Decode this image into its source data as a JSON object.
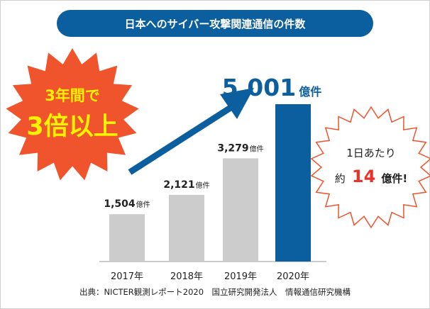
{
  "chart_data": {
    "type": "bar",
    "title": "日本へのサイバー攻撃関連通信の件数",
    "categories": [
      "2017年",
      "2018年",
      "2019年",
      "2020年"
    ],
    "values": [
      1504,
      2121,
      3279,
      5001
    ],
    "value_labels": [
      "1,504",
      "2,121",
      "3,279",
      "5,001"
    ],
    "unit": "億件",
    "highlight_index": 3,
    "colors": {
      "bar": "#cccccc",
      "highlight": "#0b5f9f",
      "title_bg": "#0b5f9f",
      "arrow": "#0b5f9f",
      "burst": "#f0542c",
      "burst_text": "#fff200",
      "accent_red": "#e8332a"
    },
    "grid": false,
    "legend": "none"
  },
  "callouts": {
    "growth_line1": "3年間で",
    "growth_line2": "3倍以上",
    "daily_line1": "1日あたり",
    "daily_prefix": "約",
    "daily_number": "14",
    "daily_suffix": "億件!"
  },
  "source": "出典：NICTER観測レポート2020　国立研究開発法人　情報通信研究機構"
}
